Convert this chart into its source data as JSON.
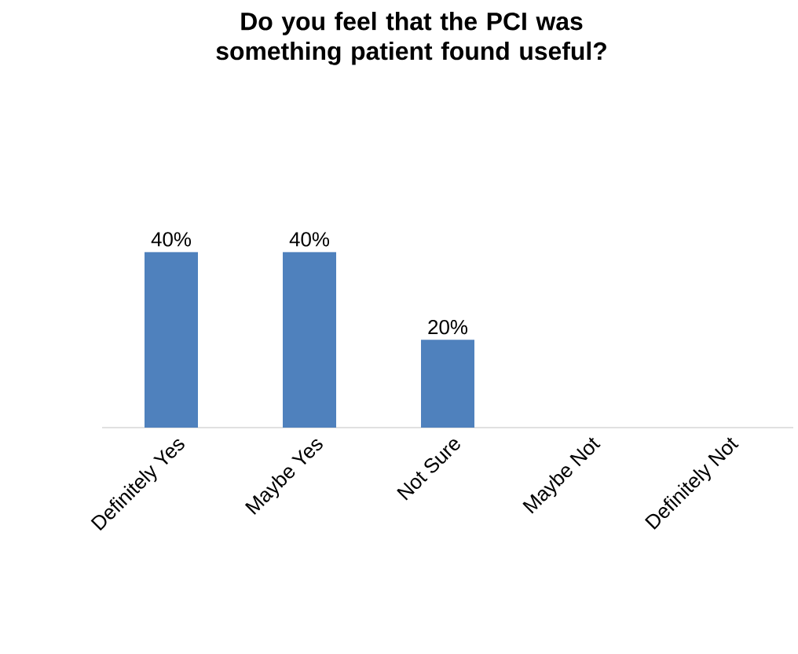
{
  "chart_data": {
    "type": "bar",
    "title": "Do you feel that the PCI was something patient found useful?",
    "categories": [
      "Definitely Yes",
      "Maybe Yes",
      "Not Sure",
      "Maybe Not",
      "Definitely Not"
    ],
    "values": [
      40,
      40,
      20,
      0,
      0
    ],
    "color": "#4f81bd",
    "value_labels": [
      "40%",
      "40%",
      "20%",
      null,
      null
    ]
  }
}
